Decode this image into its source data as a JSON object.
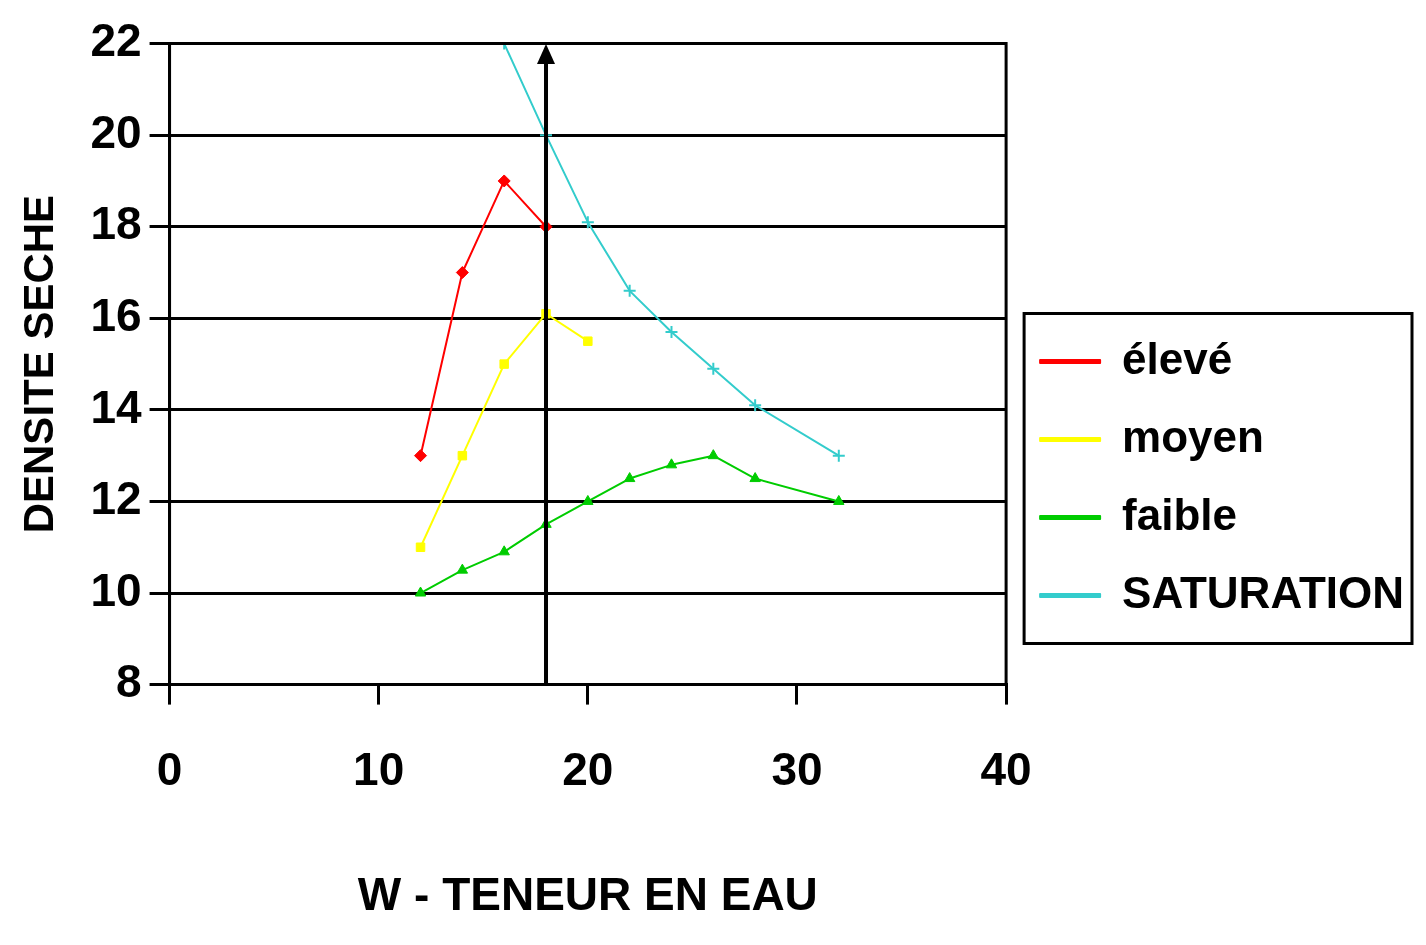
{
  "chart_data": {
    "type": "line",
    "xlabel": "W - TENEUR EN EAU",
    "ylabel": "DENSITE SECHE",
    "xlim": [
      0,
      40
    ],
    "xticks": [
      0,
      10,
      20,
      30,
      40
    ],
    "ylim": [
      8,
      22
    ],
    "yticks": [
      8,
      10,
      12,
      14,
      16,
      18,
      20,
      22
    ],
    "grid": "y",
    "legend": "right",
    "series": [
      {
        "name": "élevé",
        "color": "#ff0000",
        "marker": "diamond",
        "x": [
          12,
          14,
          16,
          18
        ],
        "values": [
          13,
          17,
          19,
          18
        ]
      },
      {
        "name": "moyen",
        "color": "#ffff00",
        "marker": "square",
        "x": [
          12,
          14,
          16,
          18,
          20
        ],
        "values": [
          11,
          13,
          15,
          16.1,
          15.5
        ]
      },
      {
        "name": "faible",
        "color": "#00cc00",
        "marker": "triangle",
        "x": [
          12,
          14,
          16,
          18,
          20,
          22,
          24,
          26,
          28,
          32
        ],
        "values": [
          10,
          10.5,
          10.9,
          11.5,
          12,
          12.5,
          12.8,
          13,
          12.5,
          12
        ]
      },
      {
        "name": "SATURATION",
        "color": "#33cccc",
        "marker": "cross",
        "x": [
          16,
          18,
          20,
          22,
          24,
          26,
          28,
          32
        ],
        "values": [
          22,
          20,
          18.1,
          16.6,
          15.7,
          14.9,
          14.1,
          13
        ]
      }
    ],
    "ref_lines": [
      {
        "axis": "x",
        "value": 18,
        "color": "#000000",
        "line_style": "solid"
      }
    ]
  }
}
